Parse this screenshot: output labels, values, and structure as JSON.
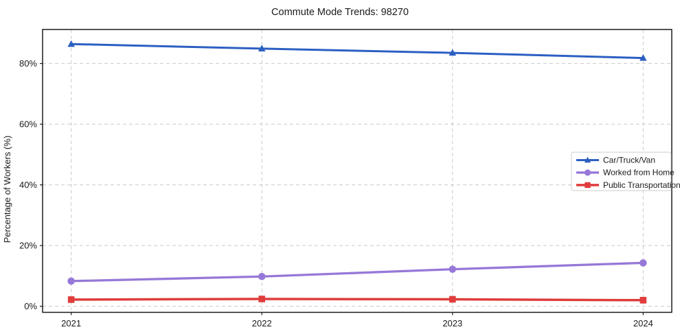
{
  "title": "Commute Mode Trends: 98270",
  "chart_data": {
    "type": "line",
    "title": "Commute Mode Trends: 98270",
    "xlabel": "",
    "ylabel": "Percentage of Workers (%)",
    "x": [
      2021,
      2022,
      2023,
      2024
    ],
    "x_tick_labels": [
      "2021",
      "2022",
      "2023",
      "2024"
    ],
    "y_ticks": [
      0,
      20,
      40,
      60,
      80
    ],
    "y_tick_labels": [
      "0%",
      "20%",
      "40%",
      "60%",
      "80%"
    ],
    "xlim": [
      2020.85,
      2024.15
    ],
    "ylim": [
      -2,
      91.2
    ],
    "grid": true,
    "grid_style": "dashed",
    "legend_position": "center right",
    "series": [
      {
        "name": "Car/Truck/Van",
        "color": "#2c5fc2",
        "marker": "triangle",
        "line_width": 3,
        "values": [
          86.4,
          84.9,
          83.5,
          81.8
        ]
      },
      {
        "name": "Worked from Home",
        "color": "#9678d8",
        "marker": "circle",
        "line_width": 3.3,
        "values": [
          8.3,
          9.8,
          12.2,
          14.3
        ]
      },
      {
        "name": "Public Transportation",
        "color": "#e03c3c",
        "marker": "square",
        "line_width": 3.5,
        "values": [
          2.2,
          2.4,
          2.3,
          2.0
        ]
      }
    ],
    "colors": {
      "grid": "#c9c9c9",
      "spine": "#1a1a1a",
      "legend_border": "#cccccc",
      "legend_bg": "#ffffff"
    }
  }
}
